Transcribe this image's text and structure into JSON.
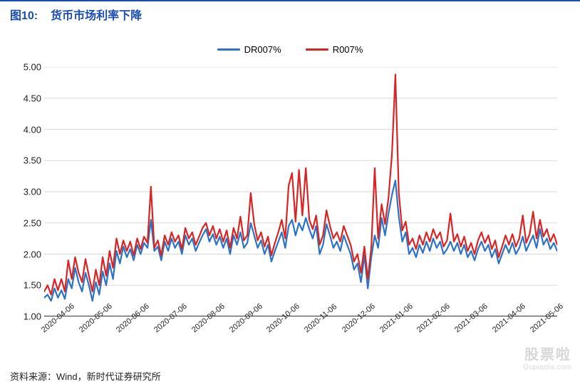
{
  "header": {
    "figNo": "图10:",
    "title": "货币市场利率下降"
  },
  "footer": {
    "source": "资料来源：Wind，新时代证券研究所"
  },
  "watermark": {
    "main": "股票啦",
    "sub": "Gupiaola.com"
  },
  "legend": [
    {
      "label": "DR007%",
      "color": "#2a73c5"
    },
    {
      "label": "R007%",
      "color": "#d92424"
    }
  ],
  "chart": {
    "type": "line",
    "background_color": "#ffffff",
    "grid_color": "#d9d9d9",
    "grid": true,
    "line_width": 2.2,
    "ylim": [
      1.0,
      5.0
    ],
    "yticks": [
      1.0,
      1.5,
      2.0,
      2.5,
      3.0,
      3.5,
      4.0,
      4.5,
      5.0
    ],
    "ytick_labels": [
      "1.00",
      "1.50",
      "2.00",
      "2.50",
      "3.00",
      "3.50",
      "4.00",
      "4.50",
      "5.00"
    ],
    "x_labels": [
      "2020-04-06",
      "2020-05-06",
      "2020-06-06",
      "2020-07-06",
      "2020-08-06",
      "2020-09-06",
      "2020-10-06",
      "2020-11-06",
      "2020-12-06",
      "2021-01-06",
      "2021-02-06",
      "2021-03-06",
      "2021-04-06",
      "2021-05-06"
    ],
    "x_label_fontsize": 11,
    "y_label_fontsize": 13,
    "series": [
      {
        "name": "DR007%",
        "color": "#2a73c5",
        "values": [
          1.3,
          1.35,
          1.25,
          1.45,
          1.3,
          1.42,
          1.28,
          1.6,
          1.45,
          1.78,
          1.55,
          1.4,
          1.7,
          1.5,
          1.25,
          1.55,
          1.35,
          1.72,
          1.5,
          1.85,
          1.6,
          2.05,
          1.85,
          2.12,
          1.95,
          2.08,
          1.9,
          2.15,
          2.0,
          2.18,
          2.1,
          2.55,
          2.05,
          2.12,
          1.9,
          2.2,
          2.05,
          2.25,
          2.1,
          2.2,
          2.0,
          2.3,
          2.15,
          2.25,
          2.05,
          2.18,
          2.3,
          2.4,
          2.2,
          2.32,
          2.15,
          2.28,
          2.1,
          2.25,
          2.0,
          2.3,
          2.15,
          2.35,
          2.1,
          2.18,
          2.5,
          2.3,
          2.1,
          2.22,
          2.0,
          2.15,
          1.88,
          2.05,
          2.2,
          2.35,
          2.1,
          2.45,
          2.55,
          2.3,
          2.5,
          2.38,
          2.58,
          2.4,
          2.25,
          2.45,
          2.0,
          2.15,
          2.48,
          2.3,
          2.1,
          2.2,
          2.05,
          2.3,
          2.15,
          2.0,
          1.75,
          1.85,
          1.55,
          1.98,
          1.45,
          1.95,
          2.3,
          2.1,
          2.58,
          2.3,
          2.65,
          2.95,
          3.18,
          2.6,
          2.2,
          2.35,
          2.0,
          2.1,
          1.95,
          2.15,
          2.02,
          2.2,
          2.05,
          2.25,
          2.1,
          2.2,
          2.0,
          2.08,
          2.2,
          2.05,
          2.18,
          2.0,
          2.15,
          1.95,
          2.05,
          1.9,
          2.08,
          2.2,
          2.05,
          2.15,
          1.95,
          2.08,
          1.85,
          2.0,
          2.15,
          2.02,
          2.18,
          2.0,
          2.1,
          2.28,
          2.05,
          2.18,
          2.3,
          2.1,
          2.4,
          2.15,
          2.25,
          2.08,
          2.18,
          2.05
        ]
      },
      {
        "name": "R007%",
        "color": "#d92424",
        "values": [
          1.4,
          1.5,
          1.35,
          1.6,
          1.42,
          1.6,
          1.4,
          1.9,
          1.6,
          1.95,
          1.7,
          1.55,
          1.92,
          1.65,
          1.4,
          1.75,
          1.5,
          1.95,
          1.65,
          2.05,
          1.78,
          2.25,
          2.0,
          2.22,
          2.05,
          2.2,
          1.98,
          2.25,
          2.08,
          2.28,
          2.18,
          3.08,
          2.1,
          2.22,
          1.98,
          2.3,
          2.15,
          2.35,
          2.2,
          2.3,
          2.08,
          2.42,
          2.25,
          2.35,
          2.15,
          2.28,
          2.42,
          2.5,
          2.3,
          2.45,
          2.25,
          2.4,
          2.2,
          2.38,
          2.1,
          2.42,
          2.25,
          2.6,
          2.22,
          2.3,
          2.98,
          2.48,
          2.22,
          2.35,
          2.12,
          2.28,
          1.98,
          2.18,
          2.35,
          2.55,
          2.25,
          3.1,
          3.3,
          2.52,
          3.35,
          2.62,
          3.38,
          2.55,
          2.4,
          2.62,
          2.15,
          2.3,
          2.7,
          2.45,
          2.25,
          2.35,
          2.2,
          2.45,
          2.3,
          2.15,
          1.88,
          2.0,
          1.7,
          2.12,
          1.6,
          2.1,
          3.38,
          2.25,
          2.8,
          2.48,
          2.9,
          3.6,
          4.88,
          2.98,
          2.38,
          2.52,
          2.15,
          2.25,
          2.08,
          2.3,
          2.15,
          2.35,
          2.2,
          2.4,
          2.25,
          2.35,
          2.12,
          2.22,
          2.65,
          2.2,
          2.32,
          2.12,
          2.28,
          2.05,
          2.18,
          2.0,
          2.22,
          2.35,
          2.18,
          2.3,
          2.08,
          2.22,
          1.95,
          2.12,
          2.3,
          2.15,
          2.32,
          2.12,
          2.25,
          2.62,
          2.18,
          2.32,
          2.68,
          2.25,
          2.55,
          2.28,
          2.4,
          2.2,
          2.32,
          2.15
        ]
      }
    ]
  }
}
